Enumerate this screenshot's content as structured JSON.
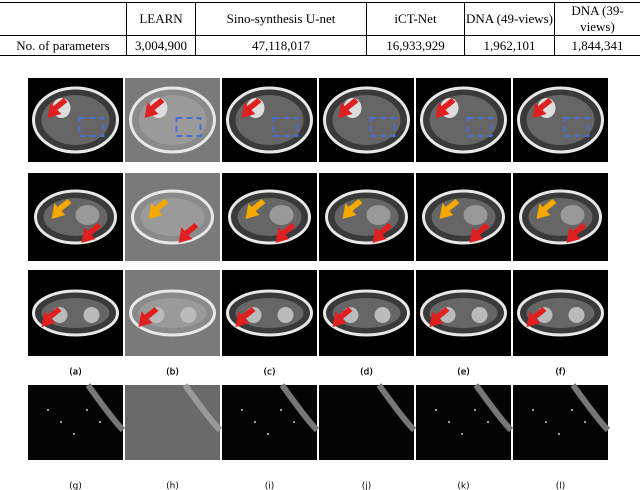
{
  "table": {
    "columns": [
      "LEARN",
      "Sino-synthesis U-net",
      "iCT-Net",
      "DNA (49-views)",
      "DNA (39-views)"
    ],
    "row_label": "No. of parameters",
    "values": [
      "3,004,900",
      "47,118,017",
      "16,933,929",
      "1,962,101",
      "1,844,341"
    ]
  },
  "figure": {
    "labels": [
      "(a)",
      "(b)",
      "(c)",
      "(d)",
      "(e)",
      "(f)",
      "(g)",
      "(h)",
      "(i)",
      "(j)",
      "(k)",
      "(l)"
    ]
  }
}
